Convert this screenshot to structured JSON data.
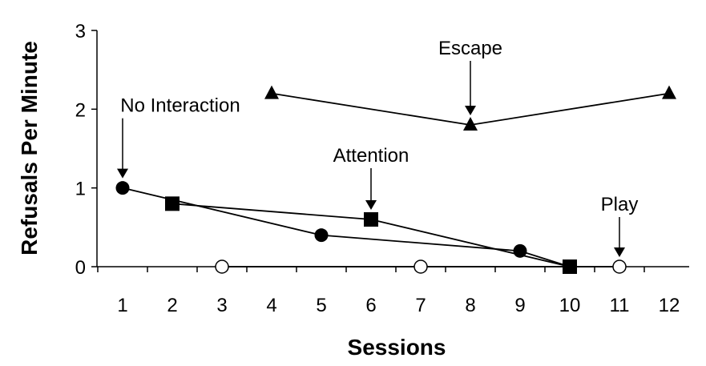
{
  "chart_data": {
    "type": "line",
    "xlabel": "Sessions",
    "ylabel": "Refusals Per Minute",
    "ylim": [
      0,
      3
    ],
    "yticks": [
      0,
      1,
      2,
      3
    ],
    "x": [
      1,
      2,
      3,
      4,
      5,
      6,
      7,
      8,
      9,
      10,
      11,
      12
    ],
    "grid": false,
    "legend": "none",
    "series": [
      {
        "marker": "circle-filled",
        "x": [
          1,
          5,
          9,
          10
        ],
        "values": [
          1.0,
          0.4,
          0.2,
          0.0
        ]
      },
      {
        "marker": "square-filled",
        "x": [
          2,
          6,
          10
        ],
        "values": [
          0.8,
          0.6,
          0.0
        ]
      },
      {
        "marker": "circle-open",
        "x": [
          3,
          7,
          11
        ],
        "values": [
          0.0,
          0.0,
          0.0
        ]
      },
      {
        "marker": "triangle-filled",
        "x": [
          4,
          8,
          12
        ],
        "values": [
          2.2,
          1.8,
          2.2
        ]
      }
    ],
    "annotations": [
      {
        "text": "No Interaction",
        "x": 1,
        "y": 1.0
      },
      {
        "text": "Attention",
        "x": 6,
        "y": 0.6
      },
      {
        "text": "Escape",
        "x": 8,
        "y": 1.8
      },
      {
        "text": "Play",
        "x": 11,
        "y": 0.0
      }
    ]
  }
}
